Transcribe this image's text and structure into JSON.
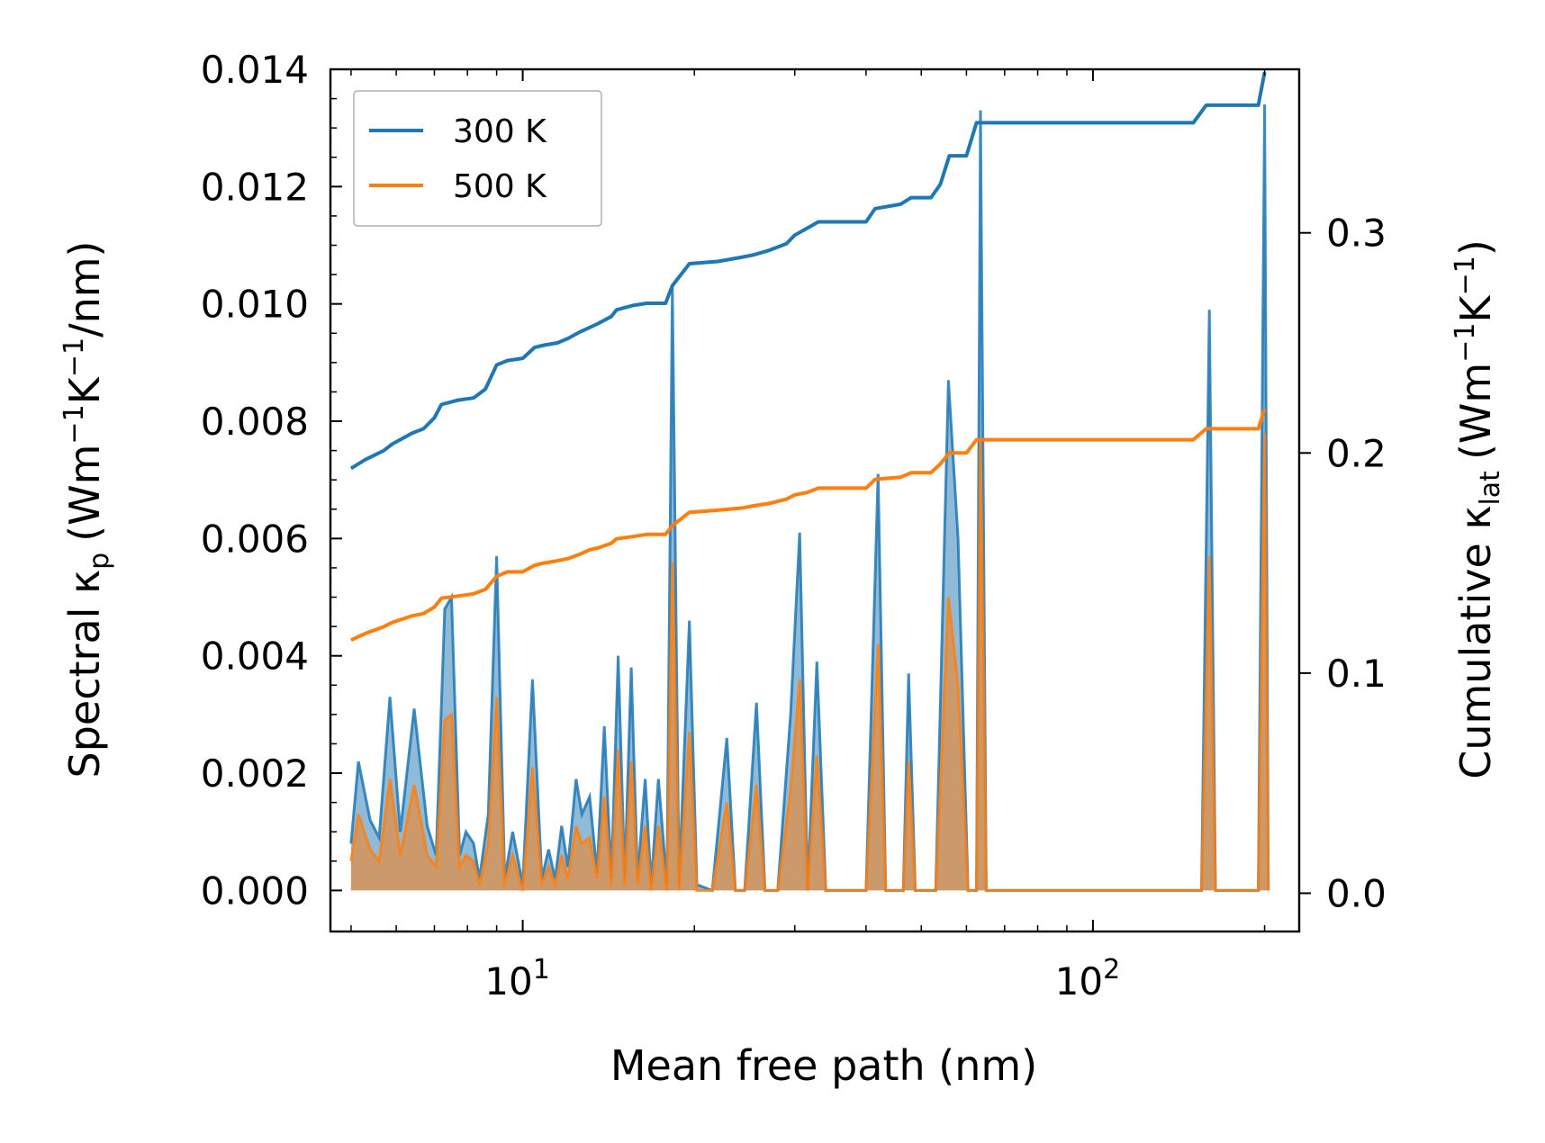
{
  "chart_data": {
    "type": "line",
    "xscale": "log",
    "xlim": [
      4.6,
      230
    ],
    "ylim_left": [
      -0.0007,
      0.014
    ],
    "ylim_right": [
      -0.0174,
      0.3743
    ],
    "xlabel": "Mean free path (nm)",
    "ylabel_left": {
      "base": "Spectral κ",
      "sub": "p",
      "units": "(Wm",
      "sup1": "−1",
      "mid": "K",
      "sup2": "−1",
      "end": "/nm)"
    },
    "ylabel_right": {
      "base": "Cumulative κ",
      "sub": "lat",
      "units": "(Wm",
      "sup1": "−1",
      "mid": "K",
      "sup2": "−1",
      "end": ")"
    },
    "x_ticks": [
      {
        "value": 10,
        "base": "10",
        "exp": "1"
      },
      {
        "value": 100,
        "base": "10",
        "exp": "2"
      }
    ],
    "y_ticks_left": [
      {
        "value": 0.0,
        "label": "0.000"
      },
      {
        "value": 0.002,
        "label": "0.002"
      },
      {
        "value": 0.004,
        "label": "0.004"
      },
      {
        "value": 0.006,
        "label": "0.006"
      },
      {
        "value": 0.008,
        "label": "0.008"
      },
      {
        "value": 0.01,
        "label": "0.010"
      },
      {
        "value": 0.012,
        "label": "0.012"
      },
      {
        "value": 0.014,
        "label": "0.014"
      }
    ],
    "y_ticks_right": [
      {
        "value": 0.0,
        "label": "0.0"
      },
      {
        "value": 0.1,
        "label": "0.1"
      },
      {
        "value": 0.2,
        "label": "0.2"
      },
      {
        "value": 0.3,
        "label": "0.3"
      }
    ],
    "legend": {
      "position": "upper-left",
      "entries": [
        {
          "name": "300 K",
          "color": "#1f77b4"
        },
        {
          "name": "500 K",
          "color": "#ff7f0e"
        }
      ]
    },
    "spectral_series": [
      {
        "name": "300 K spectral",
        "color": "#1f77b4",
        "points": [
          [
            5.0,
            0.0008
          ],
          [
            5.15,
            0.0022
          ],
          [
            5.4,
            0.0012
          ],
          [
            5.6,
            0.0009
          ],
          [
            5.85,
            0.0033
          ],
          [
            6.1,
            0.001
          ],
          [
            6.45,
            0.0031
          ],
          [
            6.8,
            0.0011
          ],
          [
            7.05,
            0.0006
          ],
          [
            7.3,
            0.0048
          ],
          [
            7.5,
            0.005
          ],
          [
            7.75,
            0.0006
          ],
          [
            7.95,
            0.001
          ],
          [
            8.2,
            0.0008
          ],
          [
            8.4,
            0.0002
          ],
          [
            8.7,
            0.0013
          ],
          [
            9.0,
            0.0057
          ],
          [
            9.3,
            0.0002
          ],
          [
            9.6,
            0.001
          ],
          [
            10.0,
            0.0001
          ],
          [
            10.4,
            0.0036
          ],
          [
            10.8,
            0.0002
          ],
          [
            11.1,
            0.0007
          ],
          [
            11.4,
            0.0002
          ],
          [
            11.7,
            0.0011
          ],
          [
            12.0,
            0.0004
          ],
          [
            12.4,
            0.0019
          ],
          [
            12.7,
            0.0013
          ],
          [
            13.1,
            0.0016
          ],
          [
            13.5,
            0.0003
          ],
          [
            13.9,
            0.0028
          ],
          [
            14.3,
            0.0002
          ],
          [
            14.7,
            0.004
          ],
          [
            15.1,
            0.0002
          ],
          [
            15.5,
            0.0038
          ],
          [
            15.9,
            0.0002
          ],
          [
            16.4,
            0.0019
          ],
          [
            16.8,
            0.0001
          ],
          [
            17.3,
            0.0019
          ],
          [
            17.9,
            0.0001
          ],
          [
            18.3,
            0.0103
          ],
          [
            18.8,
            0.0001
          ],
          [
            19.6,
            0.0046
          ],
          [
            20.2,
            0.0001
          ],
          [
            21.5,
            0.0
          ],
          [
            22.8,
            0.0026
          ],
          [
            23.6,
            0.0
          ],
          [
            24.5,
            0.0
          ],
          [
            25.7,
            0.0032
          ],
          [
            26.6,
            0.0
          ],
          [
            28.0,
            0.0
          ],
          [
            29.5,
            0.003
          ],
          [
            30.6,
            0.0061
          ],
          [
            31.6,
            0.0
          ],
          [
            32.8,
            0.0039
          ],
          [
            34.0,
            0.0
          ],
          [
            40.0,
            0.0
          ],
          [
            42.0,
            0.0071
          ],
          [
            43.3,
            0.0
          ],
          [
            46.5,
            0.0
          ],
          [
            47.5,
            0.0037
          ],
          [
            48.8,
            0.0
          ],
          [
            53.0,
            0.0
          ],
          [
            55.8,
            0.0087
          ],
          [
            58.0,
            0.006
          ],
          [
            60.4,
            0.0
          ],
          [
            62.5,
            0.0
          ],
          [
            63.5,
            0.0133
          ],
          [
            65.0,
            0.0
          ],
          [
            155,
            0.0
          ],
          [
            160,
            0.0099
          ],
          [
            164,
            0.0
          ],
          [
            195,
            0.0
          ],
          [
            200,
            0.0134
          ],
          [
            203,
            0.0
          ]
        ]
      },
      {
        "name": "500 K spectral",
        "color": "#ff7f0e",
        "points": [
          [
            5.0,
            0.0005
          ],
          [
            5.15,
            0.0013
          ],
          [
            5.4,
            0.0007
          ],
          [
            5.6,
            0.0005
          ],
          [
            5.85,
            0.0019
          ],
          [
            6.1,
            0.0006
          ],
          [
            6.45,
            0.0018
          ],
          [
            6.8,
            0.0006
          ],
          [
            7.05,
            0.0004
          ],
          [
            7.3,
            0.0029
          ],
          [
            7.5,
            0.003
          ],
          [
            7.75,
            0.0004
          ],
          [
            7.95,
            0.0006
          ],
          [
            8.2,
            0.0005
          ],
          [
            8.4,
            0.0001
          ],
          [
            8.7,
            0.0008
          ],
          [
            9.0,
            0.0033
          ],
          [
            9.3,
            0.0001
          ],
          [
            9.6,
            0.0006
          ],
          [
            10.0,
            0.0
          ],
          [
            10.4,
            0.0021
          ],
          [
            10.8,
            0.0001
          ],
          [
            11.1,
            0.0004
          ],
          [
            11.4,
            0.0001
          ],
          [
            11.7,
            0.0006
          ],
          [
            12.0,
            0.0002
          ],
          [
            12.4,
            0.0011
          ],
          [
            12.7,
            0.0008
          ],
          [
            13.1,
            0.0009
          ],
          [
            13.5,
            0.0002
          ],
          [
            13.9,
            0.0016
          ],
          [
            14.3,
            0.0001
          ],
          [
            14.7,
            0.0024
          ],
          [
            15.1,
            0.0001
          ],
          [
            15.5,
            0.0022
          ],
          [
            15.9,
            0.0001
          ],
          [
            16.4,
            0.0011
          ],
          [
            16.8,
            0.0
          ],
          [
            17.3,
            0.0011
          ],
          [
            17.9,
            0.0
          ],
          [
            18.3,
            0.0056
          ],
          [
            18.8,
            0.0
          ],
          [
            19.6,
            0.0027
          ],
          [
            20.2,
            0.0
          ],
          [
            21.5,
            0.0
          ],
          [
            22.8,
            0.0015
          ],
          [
            23.6,
            0.0
          ],
          [
            24.5,
            0.0
          ],
          [
            25.7,
            0.0018
          ],
          [
            26.6,
            0.0
          ],
          [
            28.0,
            0.0
          ],
          [
            29.5,
            0.0017
          ],
          [
            30.6,
            0.0036
          ],
          [
            31.6,
            0.0
          ],
          [
            32.8,
            0.0023
          ],
          [
            34.0,
            0.0
          ],
          [
            40.0,
            0.0
          ],
          [
            42.0,
            0.0042
          ],
          [
            43.3,
            0.0
          ],
          [
            46.5,
            0.0
          ],
          [
            47.5,
            0.0022
          ],
          [
            48.8,
            0.0
          ],
          [
            53.0,
            0.0
          ],
          [
            55.8,
            0.005
          ],
          [
            58.0,
            0.0035
          ],
          [
            60.4,
            0.0
          ],
          [
            62.5,
            0.0
          ],
          [
            63.5,
            0.0077
          ],
          [
            65.0,
            0.0
          ],
          [
            155,
            0.0
          ],
          [
            160,
            0.0057
          ],
          [
            164,
            0.0
          ],
          [
            195,
            0.0
          ],
          [
            200,
            0.0078
          ],
          [
            203,
            0.0
          ]
        ]
      }
    ],
    "cumulative_series": [
      {
        "name": "300 K",
        "color": "#1f77b4",
        "points": [
          [
            5.0,
            0.193
          ],
          [
            5.3,
            0.197
          ],
          [
            5.7,
            0.201
          ],
          [
            5.9,
            0.204
          ],
          [
            6.4,
            0.209
          ],
          [
            6.7,
            0.211
          ],
          [
            7.0,
            0.216
          ],
          [
            7.2,
            0.222
          ],
          [
            7.7,
            0.224
          ],
          [
            8.2,
            0.225
          ],
          [
            8.6,
            0.229
          ],
          [
            9.0,
            0.24
          ],
          [
            9.4,
            0.242
          ],
          [
            10.0,
            0.243
          ],
          [
            10.5,
            0.248
          ],
          [
            10.9,
            0.249
          ],
          [
            11.5,
            0.25
          ],
          [
            12.0,
            0.252
          ],
          [
            12.6,
            0.255
          ],
          [
            13.1,
            0.257
          ],
          [
            13.6,
            0.259
          ],
          [
            14.3,
            0.262
          ],
          [
            14.6,
            0.265
          ],
          [
            15.6,
            0.267
          ],
          [
            16.5,
            0.268
          ],
          [
            17.8,
            0.268
          ],
          [
            18.3,
            0.276
          ],
          [
            19.6,
            0.286
          ],
          [
            22.0,
            0.287
          ],
          [
            24.3,
            0.289
          ],
          [
            25.4,
            0.29
          ],
          [
            27.0,
            0.292
          ],
          [
            29.0,
            0.295
          ],
          [
            30.0,
            0.299
          ],
          [
            31.5,
            0.302
          ],
          [
            33.0,
            0.305
          ],
          [
            40.0,
            0.305
          ],
          [
            41.5,
            0.311
          ],
          [
            46.0,
            0.313
          ],
          [
            48.0,
            0.316
          ],
          [
            52.0,
            0.316
          ],
          [
            54.0,
            0.322
          ],
          [
            56.0,
            0.335
          ],
          [
            60.0,
            0.335
          ],
          [
            62.5,
            0.35
          ],
          [
            66.0,
            0.35
          ],
          [
            150,
            0.35
          ],
          [
            158,
            0.358
          ],
          [
            195,
            0.358
          ],
          [
            200,
            0.373
          ]
        ]
      },
      {
        "name": "500 K",
        "color": "#ff7f0e",
        "points": [
          [
            5.0,
            0.115
          ],
          [
            5.3,
            0.118
          ],
          [
            5.7,
            0.121
          ],
          [
            5.9,
            0.123
          ],
          [
            6.4,
            0.126
          ],
          [
            6.7,
            0.127
          ],
          [
            7.0,
            0.13
          ],
          [
            7.2,
            0.134
          ],
          [
            7.7,
            0.135
          ],
          [
            8.2,
            0.136
          ],
          [
            8.6,
            0.138
          ],
          [
            9.0,
            0.144
          ],
          [
            9.4,
            0.146
          ],
          [
            10.0,
            0.146
          ],
          [
            10.5,
            0.149
          ],
          [
            10.9,
            0.15
          ],
          [
            11.5,
            0.151
          ],
          [
            12.0,
            0.152
          ],
          [
            12.6,
            0.154
          ],
          [
            13.1,
            0.156
          ],
          [
            13.6,
            0.157
          ],
          [
            14.3,
            0.159
          ],
          [
            14.6,
            0.161
          ],
          [
            15.6,
            0.162
          ],
          [
            16.5,
            0.163
          ],
          [
            17.8,
            0.163
          ],
          [
            18.3,
            0.167
          ],
          [
            19.6,
            0.173
          ],
          [
            22.0,
            0.174
          ],
          [
            24.3,
            0.175
          ],
          [
            25.4,
            0.176
          ],
          [
            27.0,
            0.177
          ],
          [
            29.0,
            0.179
          ],
          [
            30.0,
            0.181
          ],
          [
            31.5,
            0.182
          ],
          [
            33.0,
            0.184
          ],
          [
            40.0,
            0.184
          ],
          [
            41.5,
            0.188
          ],
          [
            46.0,
            0.189
          ],
          [
            48.0,
            0.191
          ],
          [
            52.0,
            0.191
          ],
          [
            54.0,
            0.195
          ],
          [
            56.0,
            0.2
          ],
          [
            60.0,
            0.2
          ],
          [
            62.5,
            0.206
          ],
          [
            66.0,
            0.206
          ],
          [
            150,
            0.206
          ],
          [
            158,
            0.211
          ],
          [
            195,
            0.211
          ],
          [
            200,
            0.22
          ]
        ]
      }
    ]
  }
}
